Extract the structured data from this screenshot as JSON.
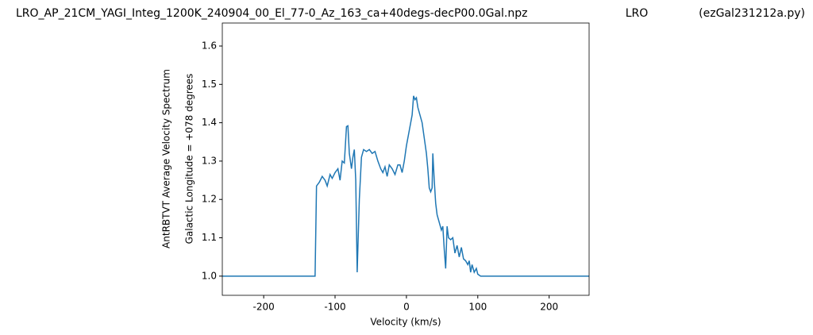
{
  "chart_data": {
    "type": "line",
    "title_parts": [
      "LRO_AP_21CM_YAGI_Integ_1200K_240904_00_El_77-0_Az_163_ca+40degs-decP00.0Gal.npz",
      "LRO",
      "(ezGal231212a.py)"
    ],
    "xlabel": "Velocity (km/s)",
    "ylabel": [
      "AntRBTVT Average Velocity Spectrum",
      "Galactic Longitude = +078 degrees"
    ],
    "xlim": [
      -258,
      256
    ],
    "ylim": [
      0.95,
      1.66
    ],
    "xticks": [
      -200,
      -100,
      0,
      100,
      200
    ],
    "yticks": [
      {
        "value": 1,
        "label": "1.0"
      },
      1.1,
      1.2,
      1.3,
      1.4,
      1.5,
      1.6
    ],
    "grid": false,
    "x": [
      -258,
      -128,
      -126,
      -122,
      -118,
      -114,
      -111,
      -107,
      -104,
      -100,
      -96,
      -93,
      -90,
      -87,
      -84,
      -82,
      -80,
      -77,
      -75,
      -73,
      -71,
      -69,
      -66,
      -63,
      -60,
      -56,
      -52,
      -48,
      -44,
      -40,
      -36,
      -33,
      -30,
      -27,
      -24,
      -20,
      -16,
      -12,
      -9,
      -6,
      -3,
      0,
      3,
      6,
      8,
      10,
      12,
      14,
      16,
      19,
      22,
      25,
      28,
      30,
      32,
      34,
      36,
      37,
      39,
      41,
      43,
      46,
      49,
      51,
      53,
      55,
      57,
      59,
      62,
      65,
      68,
      71,
      74,
      77,
      80,
      83,
      86,
      88,
      90,
      92,
      95,
      98,
      100,
      104,
      256
    ],
    "series": [
      {
        "color": "#1f77b4",
        "values": [
          1.0,
          1.0,
          1.235,
          1.245,
          1.26,
          1.25,
          1.235,
          1.265,
          1.255,
          1.27,
          1.28,
          1.25,
          1.3,
          1.295,
          1.39,
          1.392,
          1.32,
          1.28,
          1.31,
          1.33,
          1.25,
          1.01,
          1.2,
          1.31,
          1.33,
          1.325,
          1.33,
          1.32,
          1.325,
          1.3,
          1.28,
          1.27,
          1.285,
          1.26,
          1.29,
          1.28,
          1.265,
          1.29,
          1.29,
          1.27,
          1.3,
          1.34,
          1.37,
          1.4,
          1.42,
          1.47,
          1.46,
          1.465,
          1.44,
          1.42,
          1.4,
          1.36,
          1.32,
          1.28,
          1.23,
          1.22,
          1.23,
          1.32,
          1.25,
          1.19,
          1.16,
          1.14,
          1.12,
          1.13,
          1.07,
          1.02,
          1.13,
          1.1,
          1.095,
          1.1,
          1.06,
          1.08,
          1.05,
          1.075,
          1.045,
          1.04,
          1.03,
          1.04,
          1.01,
          1.03,
          1.01,
          1.02,
          1.005,
          1.0,
          1.0
        ]
      }
    ]
  }
}
